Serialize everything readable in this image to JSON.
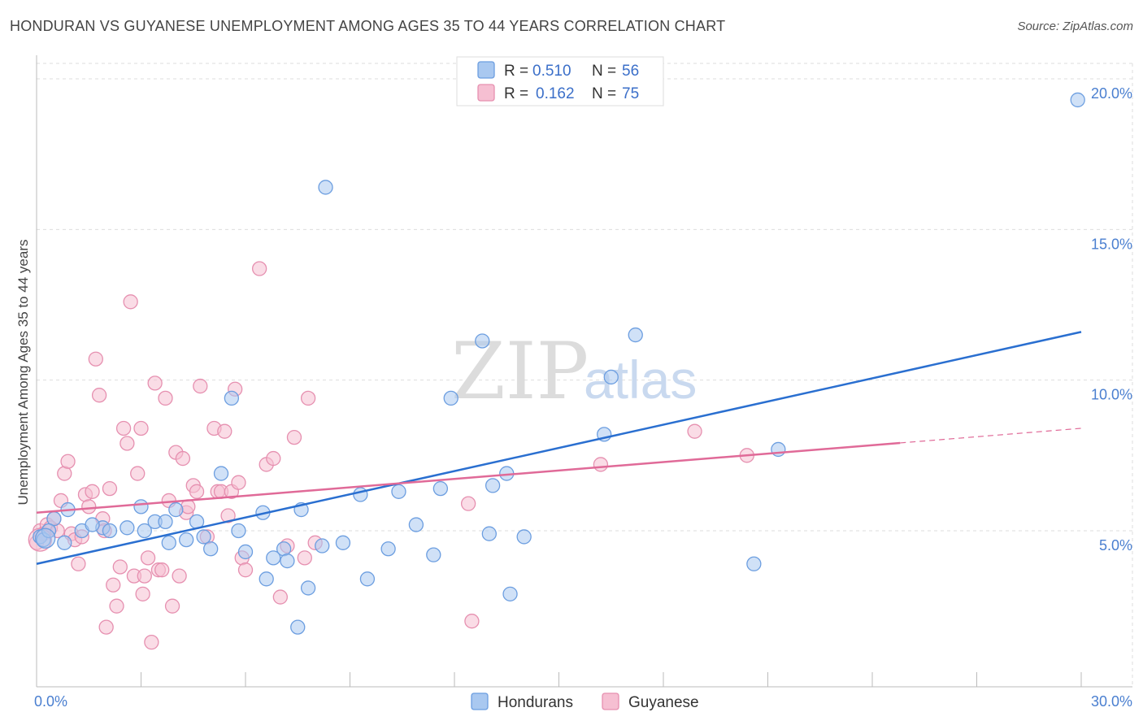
{
  "header": {
    "title": "HONDURAN VS GUYANESE UNEMPLOYMENT AMONG AGES 35 TO 44 YEARS CORRELATION CHART",
    "source": "Source: ZipAtlas.com"
  },
  "watermark": {
    "zip": "ZIP",
    "atlas": "atlas"
  },
  "colors": {
    "blue_fill": "#a9c8f0",
    "blue_stroke": "#6c9ee0",
    "blue_line": "#2a6fd0",
    "pink_fill": "#f6bfd2",
    "pink_stroke": "#e690b0",
    "pink_line": "#e06a98",
    "tick_text": "#4a7fd0",
    "grid": "#dddddd"
  },
  "legend": {
    "rows": [
      {
        "r_label": "R =",
        "r_value": "0.510",
        "n_label": "N =",
        "n_value": "56",
        "color": "blue"
      },
      {
        "r_label": "R =",
        "r_value": "0.162",
        "n_label": "N =",
        "n_value": "75",
        "color": "pink"
      }
    ],
    "series_names": [
      "Hondurans",
      "Guyanese"
    ]
  },
  "chart_data": {
    "type": "scatter",
    "title": "HONDURAN VS GUYANESE UNEMPLOYMENT AMONG AGES 35 TO 44 YEARS CORRELATION CHART",
    "xlabel": "",
    "ylabel": "Unemployment Among Ages 35 to 44 years",
    "xlim": [
      0,
      30
    ],
    "ylim": [
      0,
      20.5
    ],
    "x_tick_labels": [
      {
        "value": 0,
        "label": "0.0%"
      },
      {
        "value": 30,
        "label": "30.0%"
      }
    ],
    "y_tick_labels": [
      {
        "value": 5,
        "label": "5.0%"
      },
      {
        "value": 10,
        "label": "10.0%"
      },
      {
        "value": 15,
        "label": "15.0%"
      },
      {
        "value": 20,
        "label": "20.0%"
      }
    ],
    "legend_position": "top-center",
    "grid": true,
    "series": [
      {
        "name": "Hondurans",
        "r": 0.51,
        "n": 56,
        "trend": {
          "x0": 0,
          "y0": 3.9,
          "x1": 30,
          "y1": 11.6,
          "dashed_from": null
        },
        "points": [
          [
            0.1,
            4.8
          ],
          [
            0.2,
            4.7
          ],
          [
            0.5,
            5.4
          ],
          [
            0.8,
            4.6
          ],
          [
            0.9,
            5.7
          ],
          [
            1.3,
            5.0
          ],
          [
            1.9,
            5.1
          ],
          [
            2.1,
            5.0
          ],
          [
            2.6,
            5.1
          ],
          [
            3.0,
            5.8
          ],
          [
            3.1,
            5.0
          ],
          [
            3.4,
            5.3
          ],
          [
            3.7,
            5.3
          ],
          [
            3.8,
            4.6
          ],
          [
            4.0,
            5.7
          ],
          [
            4.3,
            4.7
          ],
          [
            4.6,
            5.3
          ],
          [
            4.8,
            4.8
          ],
          [
            5.0,
            4.4
          ],
          [
            5.3,
            6.9
          ],
          [
            5.6,
            9.4
          ],
          [
            5.8,
            5.0
          ],
          [
            6.0,
            4.3
          ],
          [
            6.5,
            5.6
          ],
          [
            6.6,
            3.4
          ],
          [
            6.8,
            4.1
          ],
          [
            7.1,
            4.4
          ],
          [
            7.2,
            4.0
          ],
          [
            7.5,
            1.8
          ],
          [
            7.6,
            5.7
          ],
          [
            7.8,
            3.1
          ],
          [
            8.2,
            4.5
          ],
          [
            8.3,
            16.4
          ],
          [
            8.8,
            4.6
          ],
          [
            9.3,
            6.2
          ],
          [
            9.5,
            3.4
          ],
          [
            10.1,
            4.4
          ],
          [
            10.4,
            6.3
          ],
          [
            10.9,
            5.2
          ],
          [
            11.4,
            4.2
          ],
          [
            11.6,
            6.4
          ],
          [
            11.9,
            9.4
          ],
          [
            12.8,
            11.3
          ],
          [
            13.0,
            4.9
          ],
          [
            13.1,
            6.5
          ],
          [
            13.5,
            6.9
          ],
          [
            13.6,
            2.9
          ],
          [
            14.0,
            4.8
          ],
          [
            16.3,
            8.2
          ],
          [
            16.5,
            10.1
          ],
          [
            17.2,
            11.5
          ],
          [
            20.6,
            3.9
          ],
          [
            21.3,
            7.7
          ],
          [
            29.9,
            19.3
          ],
          [
            0.35,
            5.0
          ],
          [
            1.6,
            5.2
          ]
        ]
      },
      {
        "name": "Guyanese",
        "r": 0.162,
        "n": 75,
        "trend": {
          "x0": 0,
          "y0": 5.6,
          "x1": 30,
          "y1": 8.4,
          "dashed_from": 24.8
        },
        "points": [
          [
            0.0,
            4.6
          ],
          [
            0.1,
            5.0
          ],
          [
            0.2,
            4.9
          ],
          [
            0.3,
            5.2
          ],
          [
            0.4,
            5.1
          ],
          [
            0.5,
            5.4
          ],
          [
            0.6,
            5.0
          ],
          [
            0.7,
            6.0
          ],
          [
            0.8,
            6.9
          ],
          [
            0.9,
            7.3
          ],
          [
            1.0,
            4.9
          ],
          [
            1.1,
            4.7
          ],
          [
            1.2,
            3.9
          ],
          [
            1.3,
            4.8
          ],
          [
            1.4,
            6.2
          ],
          [
            1.5,
            5.8
          ],
          [
            1.6,
            6.3
          ],
          [
            1.7,
            10.7
          ],
          [
            1.8,
            9.5
          ],
          [
            1.9,
            5.4
          ],
          [
            1.95,
            5.0
          ],
          [
            2.0,
            1.8
          ],
          [
            2.1,
            6.4
          ],
          [
            2.2,
            3.2
          ],
          [
            2.3,
            2.5
          ],
          [
            2.4,
            3.8
          ],
          [
            2.5,
            8.4
          ],
          [
            2.6,
            7.9
          ],
          [
            2.7,
            12.6
          ],
          [
            2.8,
            3.5
          ],
          [
            2.9,
            6.9
          ],
          [
            3.0,
            8.4
          ],
          [
            3.05,
            2.9
          ],
          [
            3.1,
            3.5
          ],
          [
            3.2,
            4.1
          ],
          [
            3.3,
            1.3
          ],
          [
            3.4,
            9.9
          ],
          [
            3.5,
            3.7
          ],
          [
            3.6,
            3.7
          ],
          [
            3.7,
            9.4
          ],
          [
            3.8,
            6.0
          ],
          [
            3.9,
            2.5
          ],
          [
            4.0,
            7.6
          ],
          [
            4.1,
            3.5
          ],
          [
            4.2,
            7.4
          ],
          [
            4.3,
            5.6
          ],
          [
            4.35,
            5.8
          ],
          [
            4.5,
            6.5
          ],
          [
            4.6,
            6.3
          ],
          [
            4.7,
            9.8
          ],
          [
            4.9,
            4.8
          ],
          [
            5.1,
            8.4
          ],
          [
            5.2,
            6.3
          ],
          [
            5.3,
            6.3
          ],
          [
            5.4,
            8.3
          ],
          [
            5.5,
            5.5
          ],
          [
            5.6,
            6.3
          ],
          [
            5.7,
            9.7
          ],
          [
            5.8,
            6.6
          ],
          [
            5.9,
            4.1
          ],
          [
            6.0,
            3.7
          ],
          [
            6.4,
            13.7
          ],
          [
            6.6,
            7.2
          ],
          [
            6.8,
            7.4
          ],
          [
            7.0,
            2.8
          ],
          [
            7.2,
            4.5
          ],
          [
            7.4,
            8.1
          ],
          [
            7.7,
            4.1
          ],
          [
            7.8,
            9.4
          ],
          [
            8.0,
            4.6
          ],
          [
            12.4,
            5.9
          ],
          [
            12.5,
            2.0
          ],
          [
            16.2,
            7.2
          ],
          [
            18.9,
            8.3
          ],
          [
            20.4,
            7.5
          ]
        ]
      }
    ]
  }
}
